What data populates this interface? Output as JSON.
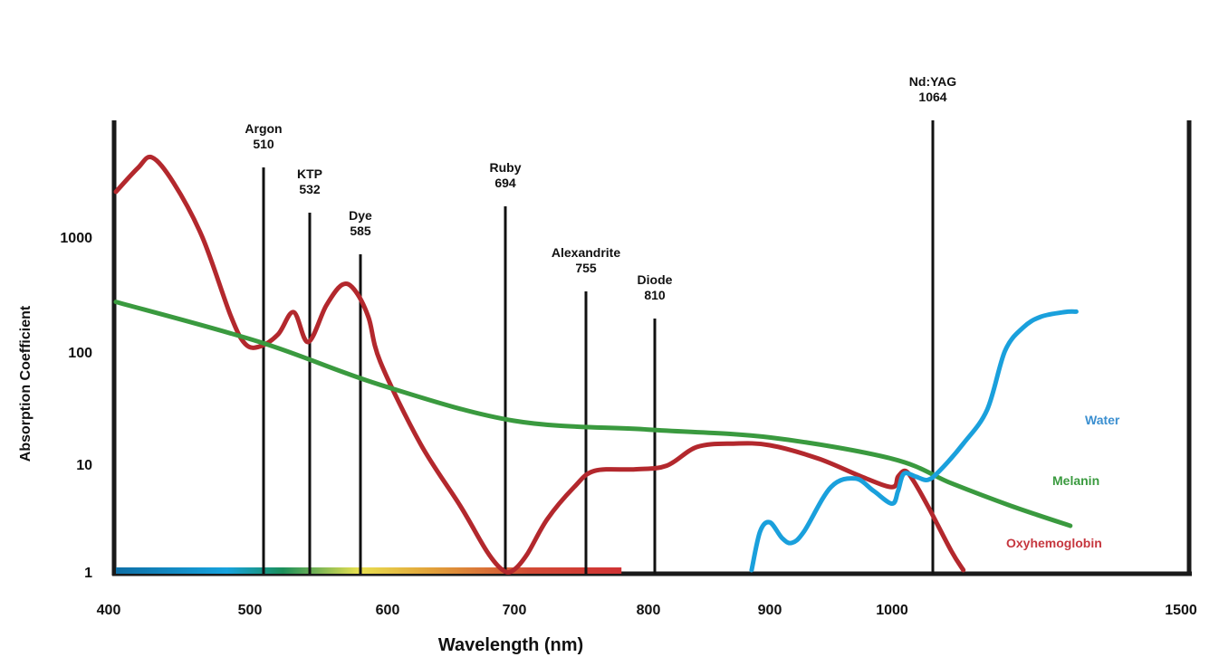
{
  "chart_data": {
    "type": "line",
    "xlabel": "Wavelength (nm)",
    "ylabel": "Absorption Coefficient",
    "y_scale": "log",
    "x_ticks": [
      "400",
      "500",
      "600",
      "700",
      "800",
      "900",
      "1000",
      "1500"
    ],
    "y_ticks": [
      "1000",
      "100",
      "10",
      "1"
    ],
    "grid": false,
    "spectrum_band": {
      "from": 400,
      "to": 780
    },
    "lasers": [
      {
        "name": "Argon",
        "wavelength": "510"
      },
      {
        "name": "KTP",
        "wavelength": "532"
      },
      {
        "name": "Dye",
        "wavelength": "585"
      },
      {
        "name": "Ruby",
        "wavelength": "694"
      },
      {
        "name": "Alexandrite",
        "wavelength": "755"
      },
      {
        "name": "Diode",
        "wavelength": "810"
      },
      {
        "name": "Nd:YAG",
        "wavelength": "1064"
      }
    ],
    "series": [
      {
        "name": "Oxyhemoglobin",
        "color": "#b3282d",
        "points": [
          [
            400,
            2500
          ],
          [
            415,
            4000
          ],
          [
            425,
            5000
          ],
          [
            440,
            3000
          ],
          [
            460,
            1000
          ],
          [
            480,
            200
          ],
          [
            490,
            115
          ],
          [
            500,
            110
          ],
          [
            515,
            140
          ],
          [
            528,
            220
          ],
          [
            540,
            120
          ],
          [
            555,
            250
          ],
          [
            568,
            380
          ],
          [
            578,
            350
          ],
          [
            590,
            200
          ],
          [
            600,
            80
          ],
          [
            630,
            15
          ],
          [
            660,
            4
          ],
          [
            680,
            1.5
          ],
          [
            692,
            1.0
          ],
          [
            700,
            1.0
          ],
          [
            710,
            1.4
          ],
          [
            725,
            3
          ],
          [
            745,
            6
          ],
          [
            760,
            8.5
          ],
          [
            790,
            8.8
          ],
          [
            815,
            9.5
          ],
          [
            840,
            14
          ],
          [
            870,
            15
          ],
          [
            900,
            14.5
          ],
          [
            940,
            11
          ],
          [
            975,
            7.5
          ],
          [
            1000,
            6
          ],
          [
            1010,
            7.5
          ],
          [
            1022,
            8.5
          ],
          [
            1035,
            7
          ],
          [
            1060,
            4
          ],
          [
            1100,
            1.5
          ],
          [
            1120,
            1.0
          ]
        ]
      },
      {
        "name": "Melanin",
        "color": "#3a9a3f",
        "points": [
          [
            400,
            270
          ],
          [
            500,
            120
          ],
          [
            600,
            50
          ],
          [
            700,
            24
          ],
          [
            800,
            20
          ],
          [
            900,
            17
          ],
          [
            1000,
            11
          ],
          [
            1100,
            6.5
          ],
          [
            1200,
            4
          ],
          [
            1300,
            2.6
          ]
        ]
      },
      {
        "name": "Water",
        "color": "#1aa0dc",
        "points": [
          [
            885,
            1.0
          ],
          [
            892,
            2.3
          ],
          [
            900,
            2.8
          ],
          [
            910,
            2.0
          ],
          [
            918,
            1.8
          ],
          [
            928,
            2.3
          ],
          [
            950,
            6
          ],
          [
            970,
            7.2
          ],
          [
            985,
            5.5
          ],
          [
            1000,
            4.2
          ],
          [
            1010,
            5.5
          ],
          [
            1020,
            8
          ],
          [
            1040,
            7.5
          ],
          [
            1060,
            7.0
          ],
          [
            1080,
            8.5
          ],
          [
            1120,
            15
          ],
          [
            1160,
            30
          ],
          [
            1190,
            100
          ],
          [
            1220,
            160
          ],
          [
            1250,
            200
          ],
          [
            1290,
            220
          ],
          [
            1310,
            222
          ]
        ]
      }
    ]
  }
}
